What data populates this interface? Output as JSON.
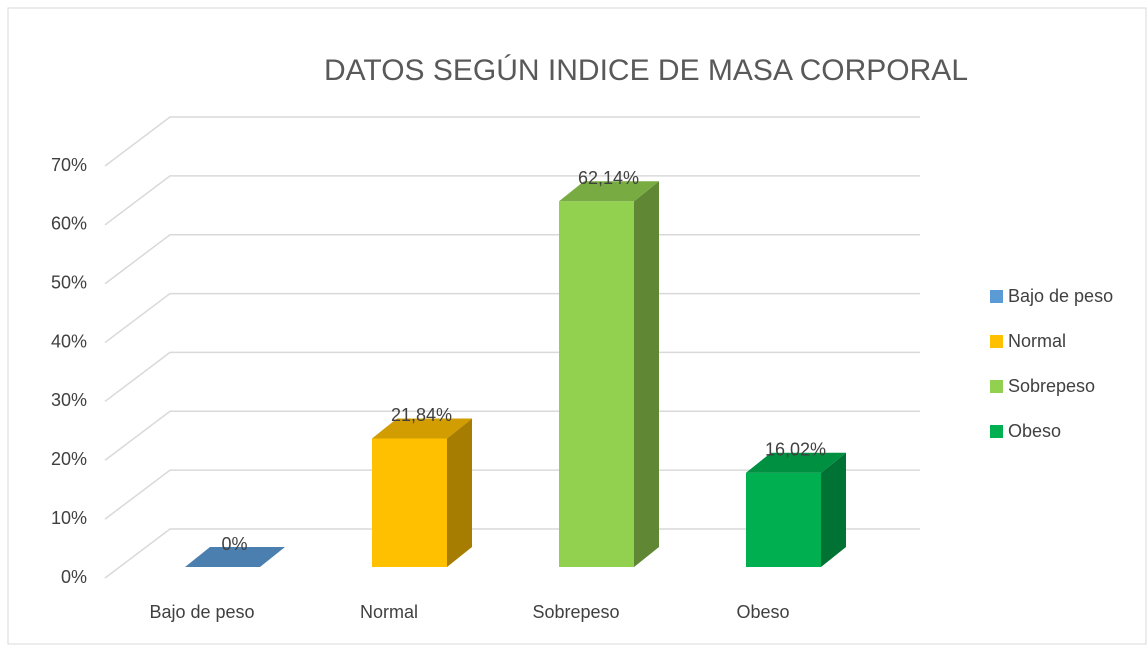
{
  "chart_data": {
    "type": "bar3d",
    "title": "DATOS SEGÚN INDICE DE MASA CORPORAL",
    "categories": [
      "Bajo de peso",
      "Normal",
      "Sobrepeso",
      "Obeso"
    ],
    "values": [
      0,
      21.84,
      62.14,
      16.02
    ],
    "value_labels": [
      "0%",
      "21,84%",
      "62,14%",
      "16,02%"
    ],
    "colors": [
      "#5b9bd5",
      "#ffc000",
      "#92d050",
      "#00b050"
    ],
    "ylim": [
      0,
      70
    ],
    "yticks": [
      {
        "value": 0,
        "label": "0%"
      },
      {
        "value": 10,
        "label": "10%"
      },
      {
        "value": 20,
        "label": "20%"
      },
      {
        "value": 30,
        "label": "30%"
      },
      {
        "value": 40,
        "label": "40%"
      },
      {
        "value": 50,
        "label": "50%"
      },
      {
        "value": 60,
        "label": "60%"
      },
      {
        "value": 70,
        "label": "70%"
      }
    ],
    "grid": true,
    "legend": "right"
  }
}
